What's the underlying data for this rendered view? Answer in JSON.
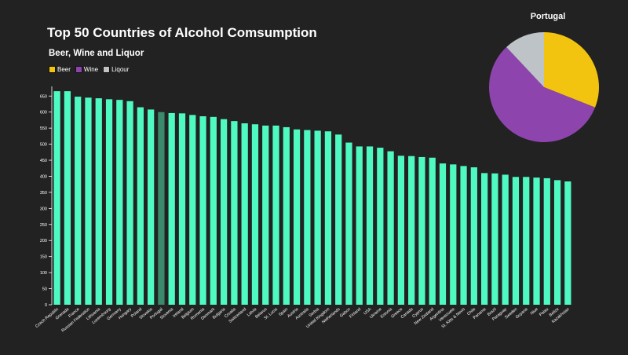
{
  "chart_data": [
    {
      "type": "bar",
      "title": "Top 50 Countries of Alcohol Comsumption",
      "subtitle": "Beer, Wine and Liquor",
      "xlabel": "",
      "ylabel": "",
      "ylim": [
        0,
        680
      ],
      "yticks": [
        0,
        50,
        100,
        150,
        200,
        250,
        300,
        350,
        400,
        450,
        500,
        550,
        600,
        650
      ],
      "grid": false,
      "bar_color": "#4efac1",
      "highlight_color": "#3a8a6e",
      "highlight_category": "Portugal",
      "legend": [
        {
          "label": "Beer",
          "color": "#f3c40f"
        },
        {
          "label": "Wine",
          "color": "#8e44ad"
        },
        {
          "label": "Liqour",
          "color": "#bdc3c7"
        }
      ],
      "categories": [
        "Czech Republic",
        "Grenada",
        "France",
        "Russian Federation",
        "Lithuania",
        "Luxembourg",
        "Germany",
        "Hungary",
        "Poland",
        "Slovakia",
        "Portugal",
        "Slovenia",
        "Ireland",
        "Belgium",
        "Romania",
        "Denmark",
        "Bulgaria",
        "Croatia",
        "Switzerland",
        "Latvia",
        "Belarus",
        "St. Lucia",
        "Spain",
        "Austria",
        "Australia",
        "Serbia",
        "United Kingdom",
        "Netherlands",
        "Gabon",
        "Finland",
        "USA",
        "Ukraine",
        "Estonia",
        "Greece",
        "Canada",
        "Cyprus",
        "New Zealand",
        "Argentina",
        "Venezuela",
        "St. Kitts & Nevis",
        "Chile",
        "Panama",
        "Brazil",
        "Paraguay",
        "Sweden",
        "Guyana",
        "Niue",
        "Palau",
        "Belize",
        "Kazakhstan"
      ],
      "values": [
        665,
        665,
        648,
        645,
        643,
        640,
        638,
        634,
        615,
        608,
        600,
        597,
        596,
        591,
        587,
        585,
        578,
        572,
        565,
        562,
        558,
        558,
        553,
        546,
        544,
        542,
        540,
        530,
        505,
        493,
        493,
        489,
        478,
        464,
        463,
        460,
        458,
        440,
        437,
        432,
        428,
        410,
        409,
        405,
        398,
        398,
        396,
        394,
        388,
        384
      ]
    },
    {
      "type": "pie",
      "title": "Portugal",
      "categories": [
        "Beer",
        "Wine",
        "Liqour"
      ],
      "values": [
        31,
        57,
        12
      ],
      "colors": [
        "#f3c40f",
        "#8e44ad",
        "#bdc3c7"
      ]
    }
  ]
}
